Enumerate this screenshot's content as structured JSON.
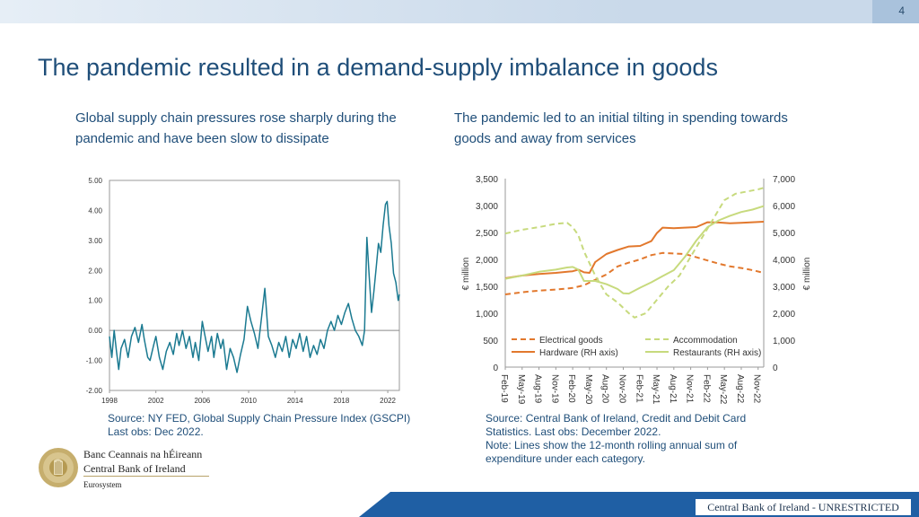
{
  "page_number": "4",
  "title": "The pandemic resulted in a demand-supply imbalance in goods",
  "left_panel": {
    "subtitle": "Global supply chain pressures rose sharply during the pandemic and have been slow to dissipate",
    "source_line1": "Source: NY FED, Global Supply Chain Pressure Index (GSCPI)",
    "source_line2": "Last obs: Dec 2022."
  },
  "right_panel": {
    "subtitle": "The pandemic led to an initial tilting in spending towards goods and away from services",
    "source_line1": "Source: Central Bank of Ireland, Credit and Debit Card",
    "source_line2": "Statistics. Last obs: December 2022.",
    "source_line3": "Note: Lines show the 12-month rolling annual sum of",
    "source_line4": "expenditure under each category."
  },
  "branding": {
    "irish_name": "Banc Ceannais na hÉireann",
    "english_name": "Central Bank of Ireland",
    "eurosystem": "Eurosystem",
    "classification": "Central Bank of Ireland - UNRESTRICTED",
    "logo_icon": "harp-seal-icon"
  },
  "colors": {
    "title": "#1f4e79",
    "gscpi": "#1b7a91",
    "electrical": "#e2782d",
    "hardware": "#e2782d",
    "accommodation": "#c7da7d",
    "restaurants": "#c7da7d",
    "footer": "#1f5fa4"
  },
  "chart_data": [
    {
      "type": "line",
      "title": "Global Supply Chain Pressure Index (GSCPI)",
      "xlabel": "",
      "ylabel": "",
      "xlim": [
        1998,
        2023
      ],
      "ylim": [
        -2.0,
        5.0
      ],
      "x_ticks": [
        "1998",
        "2002",
        "2006",
        "2010",
        "2014",
        "2018",
        "2022"
      ],
      "x_tick_values": [
        1998,
        2002,
        2006,
        2010,
        2014,
        2018,
        2022
      ],
      "y_ticks": [
        "5.00",
        "4.00",
        "3.00",
        "2.00",
        "1.00",
        "0.00",
        "-1.00",
        "-2.00"
      ],
      "y_tick_values": [
        5,
        4,
        3,
        2,
        1,
        0,
        -1,
        -2
      ],
      "series": [
        {
          "name": "GSCPI",
          "points": [
            [
              1998.0,
              -0.2
            ],
            [
              1998.2,
              -0.9
            ],
            [
              1998.4,
              0.0
            ],
            [
              1998.6,
              -0.7
            ],
            [
              1998.8,
              -1.3
            ],
            [
              1999.0,
              -0.6
            ],
            [
              1999.3,
              -0.3
            ],
            [
              1999.6,
              -0.9
            ],
            [
              1999.9,
              -0.2
            ],
            [
              2000.2,
              0.1
            ],
            [
              2000.5,
              -0.4
            ],
            [
              2000.8,
              0.2
            ],
            [
              2001.0,
              -0.3
            ],
            [
              2001.3,
              -0.9
            ],
            [
              2001.5,
              -1.0
            ],
            [
              2001.8,
              -0.5
            ],
            [
              2002.0,
              -0.2
            ],
            [
              2002.3,
              -0.9
            ],
            [
              2002.6,
              -1.3
            ],
            [
              2002.9,
              -0.7
            ],
            [
              2003.2,
              -0.4
            ],
            [
              2003.5,
              -0.8
            ],
            [
              2003.8,
              -0.1
            ],
            [
              2004.0,
              -0.5
            ],
            [
              2004.3,
              0.0
            ],
            [
              2004.6,
              -0.6
            ],
            [
              2004.9,
              -0.2
            ],
            [
              2005.2,
              -0.9
            ],
            [
              2005.4,
              -0.4
            ],
            [
              2005.7,
              -1.0
            ],
            [
              2006.0,
              0.3
            ],
            [
              2006.2,
              -0.1
            ],
            [
              2006.5,
              -0.7
            ],
            [
              2006.8,
              -0.2
            ],
            [
              2007.0,
              -0.9
            ],
            [
              2007.3,
              -0.1
            ],
            [
              2007.6,
              -0.6
            ],
            [
              2007.8,
              -0.3
            ],
            [
              2008.1,
              -1.3
            ],
            [
              2008.4,
              -0.6
            ],
            [
              2008.7,
              -0.9
            ],
            [
              2009.0,
              -1.4
            ],
            [
              2009.3,
              -0.8
            ],
            [
              2009.6,
              -0.3
            ],
            [
              2009.9,
              0.8
            ],
            [
              2010.2,
              0.3
            ],
            [
              2010.5,
              -0.1
            ],
            [
              2010.8,
              -0.6
            ],
            [
              2011.1,
              0.4
            ],
            [
              2011.4,
              1.4
            ],
            [
              2011.7,
              -0.2
            ],
            [
              2012.0,
              -0.5
            ],
            [
              2012.3,
              -0.9
            ],
            [
              2012.6,
              -0.4
            ],
            [
              2012.9,
              -0.7
            ],
            [
              2013.2,
              -0.2
            ],
            [
              2013.5,
              -0.9
            ],
            [
              2013.8,
              -0.3
            ],
            [
              2014.1,
              -0.6
            ],
            [
              2014.4,
              -0.1
            ],
            [
              2014.7,
              -0.7
            ],
            [
              2015.0,
              -0.2
            ],
            [
              2015.3,
              -0.9
            ],
            [
              2015.6,
              -0.5
            ],
            [
              2015.9,
              -0.8
            ],
            [
              2016.2,
              -0.3
            ],
            [
              2016.5,
              -0.6
            ],
            [
              2016.8,
              0.0
            ],
            [
              2017.1,
              0.3
            ],
            [
              2017.4,
              0.0
            ],
            [
              2017.7,
              0.5
            ],
            [
              2018.0,
              0.2
            ],
            [
              2018.3,
              0.6
            ],
            [
              2018.6,
              0.9
            ],
            [
              2018.9,
              0.4
            ],
            [
              2019.2,
              0.0
            ],
            [
              2019.5,
              -0.2
            ],
            [
              2019.8,
              -0.5
            ],
            [
              2020.0,
              0.0
            ],
            [
              2020.2,
              3.1
            ],
            [
              2020.4,
              1.8
            ],
            [
              2020.6,
              0.6
            ],
            [
              2020.8,
              1.3
            ],
            [
              2021.0,
              2.1
            ],
            [
              2021.2,
              2.9
            ],
            [
              2021.4,
              2.6
            ],
            [
              2021.6,
              3.5
            ],
            [
              2021.8,
              4.2
            ],
            [
              2021.95,
              4.3
            ],
            [
              2022.1,
              3.5
            ],
            [
              2022.3,
              2.9
            ],
            [
              2022.5,
              1.9
            ],
            [
              2022.7,
              1.6
            ],
            [
              2022.9,
              1.0
            ],
            [
              2023.0,
              1.2
            ]
          ]
        }
      ]
    },
    {
      "type": "line",
      "title": "",
      "xlabel": "",
      "ylabel": "€ million",
      "ylabel_right": "€ million",
      "categories": [
        "Feb-19",
        "May-19",
        "Aug-19",
        "Nov-19",
        "Feb-20",
        "May-20",
        "Aug-20",
        "Nov-20",
        "Feb-21",
        "May-21",
        "Aug-21",
        "Nov-21",
        "Feb-22",
        "May-22",
        "Aug-22",
        "Nov-22"
      ],
      "x_extent_months": [
        0,
        46
      ],
      "ylim": [
        0,
        3500
      ],
      "ylim_right": [
        0,
        7000
      ],
      "y_ticks": [
        "3,500",
        "3,000",
        "2,500",
        "2,000",
        "1,500",
        "1,000",
        "500",
        "0"
      ],
      "y_tick_values": [
        3500,
        3000,
        2500,
        2000,
        1500,
        1000,
        500,
        0
      ],
      "y_ticks_right": [
        "7,000",
        "6,000",
        "5,000",
        "4,000",
        "3,000",
        "2,000",
        "1,000",
        "0"
      ],
      "y_tick_values_right": [
        7000,
        6000,
        5000,
        4000,
        3000,
        2000,
        1000,
        0
      ],
      "legend": [
        "Electrical goods",
        "Accommodation",
        "Hardware (RH axis)",
        "Restaurants (RH axis)"
      ],
      "legend_position": "bottom",
      "series": [
        {
          "name": "Electrical goods",
          "axis": "left",
          "style": "dashed",
          "color_key": "electrical",
          "points": [
            [
              0,
              1350
            ],
            [
              3,
              1390
            ],
            [
              6,
              1420
            ],
            [
              9,
              1440
            ],
            [
              12,
              1470
            ],
            [
              14,
              1520
            ],
            [
              16,
              1620
            ],
            [
              18,
              1720
            ],
            [
              20,
              1870
            ],
            [
              22,
              1940
            ],
            [
              24,
              2000
            ],
            [
              26,
              2080
            ],
            [
              28,
              2120
            ],
            [
              30,
              2110
            ],
            [
              32,
              2100
            ],
            [
              34,
              2040
            ],
            [
              36,
              1980
            ],
            [
              38,
              1920
            ],
            [
              40,
              1870
            ],
            [
              42,
              1840
            ],
            [
              44,
              1800
            ],
            [
              46,
              1750
            ]
          ]
        },
        {
          "name": "Hardware (RH axis)",
          "axis": "right",
          "style": "solid",
          "color_key": "hardware",
          "points": [
            [
              0,
              3300
            ],
            [
              3,
              3400
            ],
            [
              6,
              3460
            ],
            [
              9,
              3500
            ],
            [
              12,
              3560
            ],
            [
              13,
              3620
            ],
            [
              14,
              3520
            ],
            [
              15,
              3500
            ],
            [
              16,
              3900
            ],
            [
              18,
              4200
            ],
            [
              20,
              4350
            ],
            [
              22,
              4480
            ],
            [
              24,
              4500
            ],
            [
              26,
              4680
            ],
            [
              27,
              4980
            ],
            [
              28,
              5180
            ],
            [
              30,
              5160
            ],
            [
              32,
              5180
            ],
            [
              34,
              5200
            ],
            [
              36,
              5380
            ],
            [
              38,
              5370
            ],
            [
              40,
              5340
            ],
            [
              42,
              5360
            ],
            [
              44,
              5380
            ],
            [
              46,
              5400
            ]
          ]
        },
        {
          "name": "Accommodation",
          "axis": "left",
          "style": "dashed",
          "color_key": "accommodation",
          "points": [
            [
              0,
              2480
            ],
            [
              3,
              2550
            ],
            [
              6,
              2600
            ],
            [
              9,
              2660
            ],
            [
              11,
              2680
            ],
            [
              12,
              2600
            ],
            [
              13,
              2450
            ],
            [
              14,
              2150
            ],
            [
              16,
              1700
            ],
            [
              18,
              1350
            ],
            [
              20,
              1200
            ],
            [
              22,
              1000
            ],
            [
              23,
              920
            ],
            [
              25,
              1000
            ],
            [
              27,
              1250
            ],
            [
              29,
              1500
            ],
            [
              31,
              1700
            ],
            [
              33,
              2050
            ],
            [
              35,
              2400
            ],
            [
              37,
              2750
            ],
            [
              39,
              3100
            ],
            [
              41,
              3220
            ],
            [
              43,
              3260
            ],
            [
              45,
              3300
            ],
            [
              46,
              3330
            ]
          ]
        },
        {
          "name": "Restaurants (RH axis)",
          "axis": "right",
          "style": "solid",
          "color_key": "restaurants",
          "points": [
            [
              0,
              3280
            ],
            [
              3,
              3400
            ],
            [
              6,
              3540
            ],
            [
              9,
              3620
            ],
            [
              11,
              3700
            ],
            [
              12,
              3720
            ],
            [
              13,
              3620
            ],
            [
              14,
              3200
            ],
            [
              16,
              3200
            ],
            [
              18,
              3080
            ],
            [
              20,
              2900
            ],
            [
              21,
              2740
            ],
            [
              22,
              2730
            ],
            [
              24,
              2950
            ],
            [
              26,
              3150
            ],
            [
              28,
              3380
            ],
            [
              30,
              3600
            ],
            [
              32,
              4100
            ],
            [
              34,
              4700
            ],
            [
              36,
              5200
            ],
            [
              38,
              5450
            ],
            [
              40,
              5620
            ],
            [
              42,
              5760
            ],
            [
              44,
              5850
            ],
            [
              46,
              5980
            ]
          ]
        }
      ]
    }
  ]
}
